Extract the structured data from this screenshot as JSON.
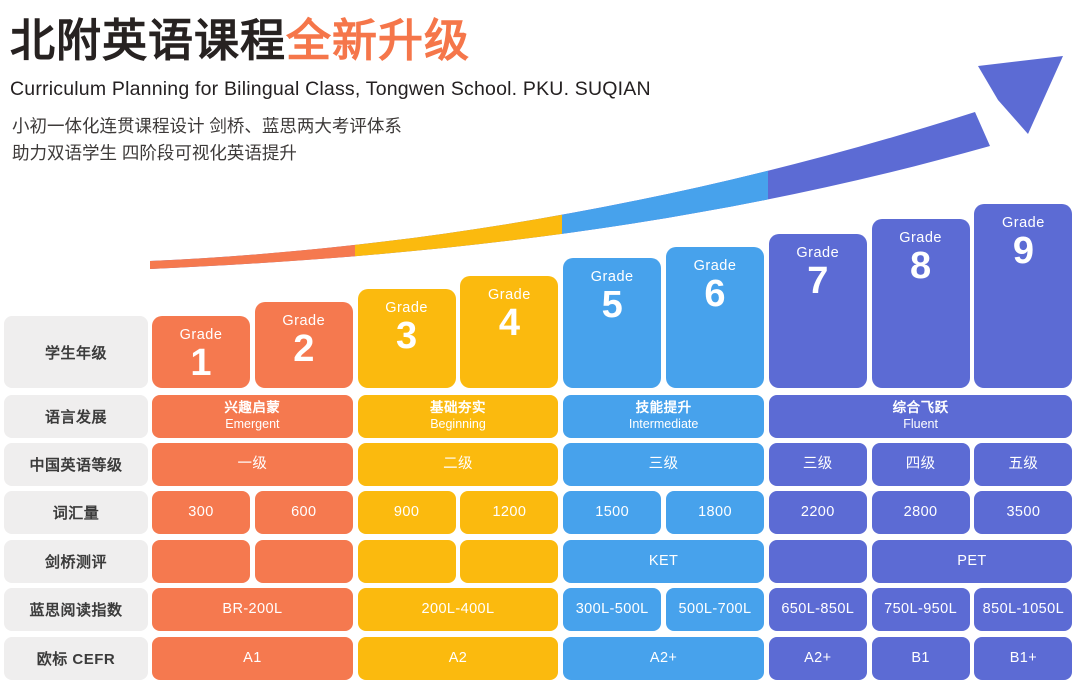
{
  "header": {
    "title_black": "北附英语课程",
    "title_orange": "全新升级",
    "subtitle": "Curriculum Planning for Bilingual Class, Tongwen School. PKU. SUQIAN",
    "description_line1": "小初一体化连贯课程设计 剑桥、蓝思两大考评体系",
    "description_line2": "助力双语学生 四阶段可视化英语提升"
  },
  "palette": {
    "orange": "#F5794F",
    "yellow": "#FBBA0E",
    "lightblue": "#47A2EC",
    "indigo": "#5C6BD4",
    "label_bg": "#EFEEEE",
    "title_orange": "#F5764A"
  },
  "grades": {
    "word": "Grade",
    "numbers": [
      "1",
      "2",
      "3",
      "4",
      "5",
      "6",
      "7",
      "8",
      "9"
    ],
    "colors": [
      "orange",
      "orange",
      "yellow",
      "yellow",
      "lightblue",
      "lightblue",
      "indigo",
      "indigo",
      "indigo"
    ]
  },
  "rows": [
    {
      "key": "student-grade",
      "label": "学生年级",
      "cells": []
    },
    {
      "key": "language-development",
      "label": "语言发展",
      "cells": [
        {
          "start": 1,
          "span": 2,
          "color": "orange",
          "line1": "兴趣启蒙",
          "line2": "Emergent"
        },
        {
          "start": 3,
          "span": 2,
          "color": "yellow",
          "line1": "基础夯实",
          "line2": "Beginning"
        },
        {
          "start": 5,
          "span": 2,
          "color": "lightblue",
          "line1": "技能提升",
          "line2": "Intermediate"
        },
        {
          "start": 7,
          "span": 3,
          "color": "indigo",
          "line1": "综合飞跃",
          "line2": "Fluent"
        }
      ]
    },
    {
      "key": "china-english-level",
      "label": "中国英语等级",
      "cells": [
        {
          "start": 1,
          "span": 2,
          "color": "orange",
          "text": "一级"
        },
        {
          "start": 3,
          "span": 2,
          "color": "yellow",
          "text": "二级"
        },
        {
          "start": 5,
          "span": 2,
          "color": "lightblue",
          "text": "三级"
        },
        {
          "start": 7,
          "span": 1,
          "color": "indigo",
          "text": "三级"
        },
        {
          "start": 8,
          "span": 1,
          "color": "indigo",
          "text": "四级"
        },
        {
          "start": 9,
          "span": 1,
          "color": "indigo",
          "text": "五级"
        }
      ]
    },
    {
      "key": "vocabulary",
      "label": "词汇量",
      "cells": [
        {
          "start": 1,
          "span": 1,
          "color": "orange",
          "text": "300"
        },
        {
          "start": 2,
          "span": 1,
          "color": "orange",
          "text": "600"
        },
        {
          "start": 3,
          "span": 1,
          "color": "yellow",
          "text": "900"
        },
        {
          "start": 4,
          "span": 1,
          "color": "yellow",
          "text": "1200"
        },
        {
          "start": 5,
          "span": 1,
          "color": "lightblue",
          "text": "1500"
        },
        {
          "start": 6,
          "span": 1,
          "color": "lightblue",
          "text": "1800"
        },
        {
          "start": 7,
          "span": 1,
          "color": "indigo",
          "text": "2200"
        },
        {
          "start": 8,
          "span": 1,
          "color": "indigo",
          "text": "2800"
        },
        {
          "start": 9,
          "span": 1,
          "color": "indigo",
          "text": "3500"
        }
      ]
    },
    {
      "key": "cambridge-assessment",
      "label": "剑桥测评",
      "cells": [
        {
          "start": 1,
          "span": 1,
          "color": "orange",
          "text": ""
        },
        {
          "start": 2,
          "span": 1,
          "color": "orange",
          "text": ""
        },
        {
          "start": 3,
          "span": 1,
          "color": "yellow",
          "text": ""
        },
        {
          "start": 4,
          "span": 1,
          "color": "yellow",
          "text": ""
        },
        {
          "start": 5,
          "span": 2,
          "color": "lightblue",
          "text": "KET"
        },
        {
          "start": 7,
          "span": 1,
          "color": "indigo",
          "text": ""
        },
        {
          "start": 8,
          "span": 2,
          "color": "indigo",
          "text": "PET"
        }
      ]
    },
    {
      "key": "lexile-reading-index",
      "label": "蓝思阅读指数",
      "cells": [
        {
          "start": 1,
          "span": 2,
          "color": "orange",
          "text": "BR-200L"
        },
        {
          "start": 3,
          "span": 2,
          "color": "yellow",
          "text": "200L-400L"
        },
        {
          "start": 5,
          "span": 1,
          "color": "lightblue",
          "text": "300L-500L"
        },
        {
          "start": 6,
          "span": 1,
          "color": "lightblue",
          "text": "500L-700L"
        },
        {
          "start": 7,
          "span": 1,
          "color": "indigo",
          "text": "650L-850L"
        },
        {
          "start": 8,
          "span": 1,
          "color": "indigo",
          "text": "750L-950L"
        },
        {
          "start": 9,
          "span": 1,
          "color": "indigo",
          "text": "850L-1050L"
        }
      ]
    },
    {
      "key": "cefr",
      "label": "欧标 CEFR",
      "cells": [
        {
          "start": 1,
          "span": 2,
          "color": "orange",
          "text": "A1"
        },
        {
          "start": 3,
          "span": 2,
          "color": "yellow",
          "text": "A2"
        },
        {
          "start": 5,
          "span": 2,
          "color": "lightblue",
          "text": "A2+"
        },
        {
          "start": 7,
          "span": 1,
          "color": "indigo",
          "text": "A2+"
        },
        {
          "start": 8,
          "span": 1,
          "color": "indigo",
          "text": "B1"
        },
        {
          "start": 9,
          "span": 1,
          "color": "indigo",
          "text": "B1+"
        }
      ]
    }
  ]
}
